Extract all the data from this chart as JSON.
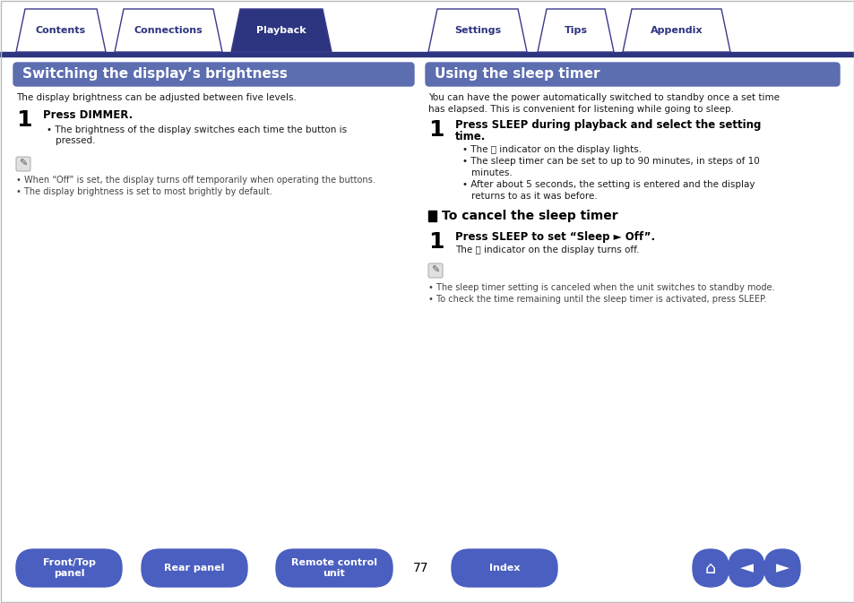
{
  "bg_color": "#ffffff",
  "tab_active_bg": "#2d3480",
  "tab_inactive_bg": "#ffffff",
  "tab_border_color": "#3a3a8c",
  "tab_line_color": "#2d3480",
  "section_header_bg": "#5c6db0",
  "section_header_text": "#ffffff",
  "body_text_color": "#1a1a1a",
  "small_text_color": "#444444",
  "tabs": [
    "Contents",
    "Connections",
    "Playback",
    "Settings",
    "Tips",
    "Appendix"
  ],
  "active_tab_idx": 2,
  "page_number": "77",
  "left_section_title": "Switching the display’s brightness",
  "left_intro": "The display brightness can be adjusted between five levels.",
  "left_step1_title": "Press DIMMER.",
  "left_step1_b1_l1": "The brightness of the display switches each time the button is",
  "left_step1_b1_l2": "pressed.",
  "left_note1": "When “Off” is set, the display turns off temporarily when operating the buttons.",
  "left_note2": "The display brightness is set to most brightly by default.",
  "right_section_title": "Using the sleep timer",
  "right_intro_l1": "You can have the power automatically switched to standby once a set time",
  "right_intro_l2": "has elapsed. This is convenient for listening while going to sleep.",
  "right_step1_title_l1": "Press SLEEP during playback and select the setting",
  "right_step1_title_l2": "time.",
  "right_b1": "The Ⓕ indicator on the display lights.",
  "right_b2_l1": "The sleep timer can be set to up to 90 minutes, in steps of 10",
  "right_b2_l2": "minutes.",
  "right_b3_l1": "After about 5 seconds, the setting is entered and the display",
  "right_b3_l2": "returns to as it was before.",
  "cancel_title": "To cancel the sleep timer",
  "cancel_step1_title": "Press SLEEP to set “Sleep ► Off”.",
  "cancel_step1_sub_l1": "The Ⓕ indicator on the display turns off.",
  "right_note1": "The sleep timer setting is canceled when the unit switches to standby mode.",
  "right_note2": "To check the time remaining until the sleep timer is activated, press SLEEP.",
  "btn_color": "#4a5fbf",
  "btn_text_color": "#ffffff",
  "btn_labels": [
    "Front/Top\npanel",
    "Rear panel",
    "Remote control\nunit",
    "Index"
  ]
}
